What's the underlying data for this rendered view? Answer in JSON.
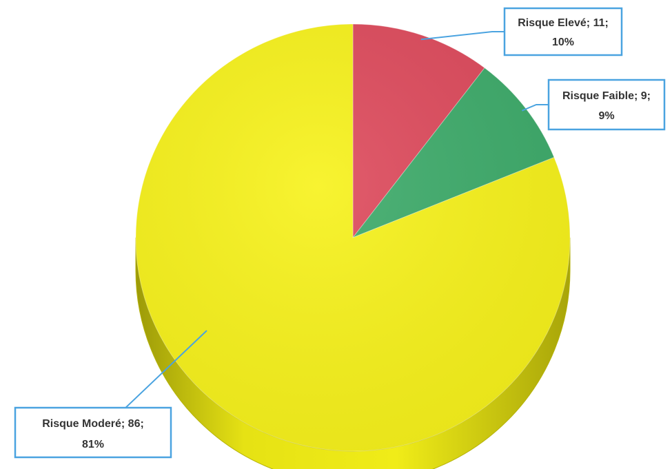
{
  "chart_data": {
    "type": "pie",
    "title": "",
    "style": "3d",
    "slices": [
      {
        "name": "Risque Elevé",
        "value": 11,
        "percent": "10%",
        "label_line1": "Risque Elevé; 11;",
        "label_line2": "10%",
        "color": "#de4a5c"
      },
      {
        "name": "Risque Faible",
        "value": 9,
        "percent": "9%",
        "label_line1": "Risque Faible; 9;",
        "label_line2": "9%",
        "color": "#3dab6a"
      },
      {
        "name": "Risque Moderé",
        "value": 86,
        "percent": "81%",
        "label_line1": "Risque Moderé; 86;",
        "label_line2": "81%",
        "color": "#f7f21a"
      }
    ],
    "label_box_border_color": "#4aa3e0",
    "side_color": "#d8d40a"
  }
}
